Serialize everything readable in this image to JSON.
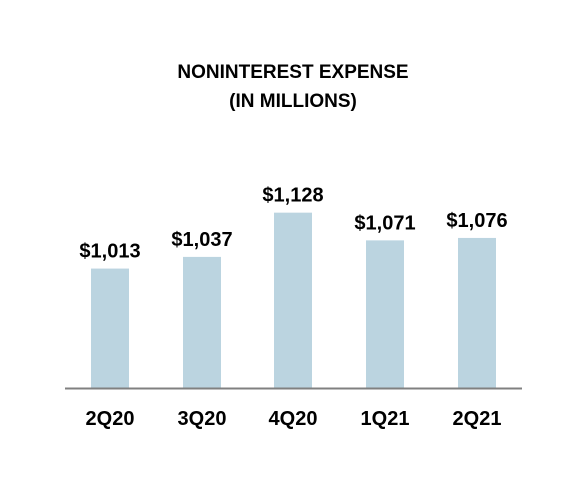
{
  "chart_data": {
    "type": "bar",
    "title_line1": "NONINTEREST EXPENSE",
    "title_line2": "(IN MILLIONS)",
    "categories": [
      "2Q20",
      "3Q20",
      "4Q20",
      "1Q21",
      "2Q21"
    ],
    "values": [
      1013,
      1037,
      1128,
      1071,
      1076
    ],
    "value_labels": [
      "$1,013",
      "$1,037",
      "$1,128",
      "$1,071",
      "$1,076"
    ],
    "xlabel": "",
    "ylabel": "",
    "grid": false,
    "legend": "none",
    "colors": {
      "bar": "#BBD4E0",
      "axis": "#808080",
      "text": "#000000"
    }
  }
}
